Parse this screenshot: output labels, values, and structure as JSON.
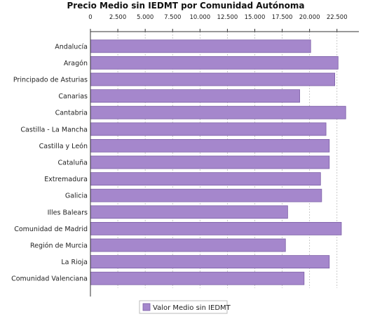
{
  "chart_data": {
    "type": "bar",
    "orientation": "horizontal",
    "title": "Precio Medio sin IEDMT por Comunidad Autónoma",
    "categories": [
      "Andalucía",
      "Aragón",
      "Principado de Asturias",
      "Canarias",
      "Cantabria",
      "Castilla - La Mancha",
      "Castilla y León",
      "Cataluña",
      "Extremadura",
      "Galicia",
      "Illes Balears",
      "Comunidad de Madrid",
      "Región de Murcia",
      "La Rioja",
      "Comunidad Valenciana"
    ],
    "series": [
      {
        "name": "Valor Medio sin IEDMT",
        "color": "#a587cc",
        "values": [
          20100,
          22600,
          22300,
          19100,
          23300,
          21500,
          21800,
          21800,
          21000,
          21100,
          18000,
          22900,
          17800,
          21800,
          19500
        ]
      }
    ],
    "x_ticks": [
      "0",
      "2.500",
      "5.000",
      "7.500",
      "10.000",
      "12.500",
      "15.000",
      "17.500",
      "20.000",
      "22.500"
    ],
    "xlim": [
      0,
      24500
    ],
    "tick_step": 2500,
    "grid": true,
    "legend_position": "bottom",
    "colors": {
      "bar_fill": "#a587cc",
      "bar_stroke": "#7c5fa6",
      "grid": "#bbbbbb",
      "axis": "#333333"
    }
  }
}
